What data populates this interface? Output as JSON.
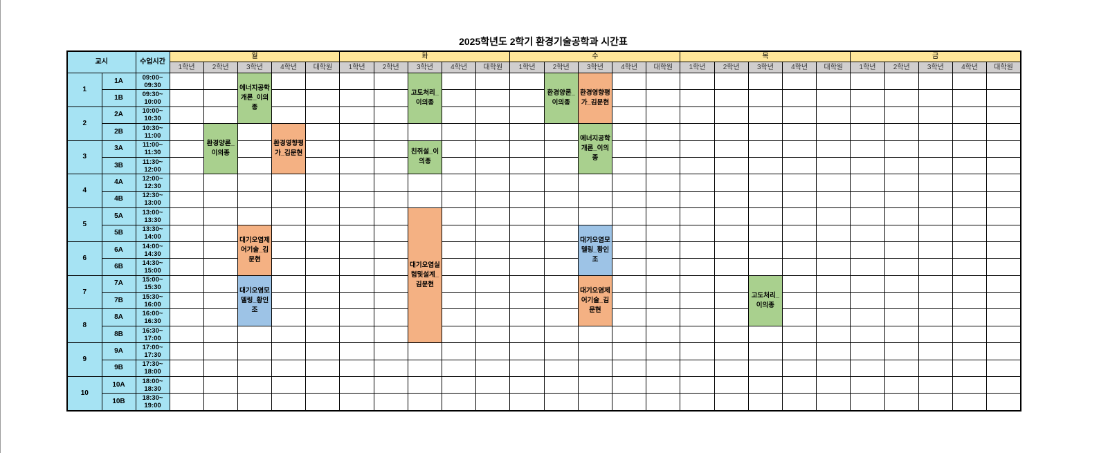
{
  "title": "2025학년도 2학기 환경기술공학과 시간표",
  "header": {
    "period_label": "교시",
    "time_label": "수업시간"
  },
  "days": [
    "월",
    "화",
    "수",
    "목",
    "금"
  ],
  "grades": [
    "1학년",
    "2학년",
    "3학년",
    "4학년",
    "대학원"
  ],
  "periods": [
    {
      "num": "1",
      "slots": [
        {
          "id": "1A",
          "time": "09:00~ 09:30"
        },
        {
          "id": "1B",
          "time": "09:30~ 10:00"
        }
      ]
    },
    {
      "num": "2",
      "slots": [
        {
          "id": "2A",
          "time": "10:00~ 10:30"
        },
        {
          "id": "2B",
          "time": "10:30~ 11:00"
        }
      ]
    },
    {
      "num": "3",
      "slots": [
        {
          "id": "3A",
          "time": "11:00~ 11:30"
        },
        {
          "id": "3B",
          "time": "11:30~ 12:00"
        }
      ]
    },
    {
      "num": "4",
      "slots": [
        {
          "id": "4A",
          "time": "12:00~ 12:30"
        },
        {
          "id": "4B",
          "time": "12:30~ 13:00"
        }
      ]
    },
    {
      "num": "5",
      "slots": [
        {
          "id": "5A",
          "time": "13:00~ 13:30"
        },
        {
          "id": "5B",
          "time": "13:30~ 14:00"
        }
      ]
    },
    {
      "num": "6",
      "slots": [
        {
          "id": "6A",
          "time": "14:00~ 14:30"
        },
        {
          "id": "6B",
          "time": "14:30~ 15:00"
        }
      ]
    },
    {
      "num": "7",
      "slots": [
        {
          "id": "7A",
          "time": "15:00~ 15:30"
        },
        {
          "id": "7B",
          "time": "15:30~ 16:00"
        }
      ]
    },
    {
      "num": "8",
      "slots": [
        {
          "id": "8A",
          "time": "16:00~ 16:30"
        },
        {
          "id": "8B",
          "time": "16:30~ 17:00"
        }
      ]
    },
    {
      "num": "9",
      "slots": [
        {
          "id": "9A",
          "time": "17:00~ 17:30"
        },
        {
          "id": "9B",
          "time": "17:30~ 18:00"
        }
      ]
    },
    {
      "num": "10",
      "slots": [
        {
          "id": "10A",
          "time": "18:00~ 18:30"
        },
        {
          "id": "10B",
          "time": "18:30~ 19:00"
        }
      ]
    }
  ],
  "colors": {
    "green": "#a9d08e",
    "orange": "#f4b183",
    "blue": "#9dc3e6",
    "header_blue": "#a6e3f3",
    "day_yellow": "#ffe699",
    "grade_gray": "#d0cece"
  },
  "classes": [
    {
      "day": "월",
      "grade": "3학년",
      "start": "1A",
      "end": "2A",
      "name": "에너지공학개론_이의종",
      "color": "green"
    },
    {
      "day": "월",
      "grade": "2학년",
      "start": "2B",
      "end": "3B",
      "name": "환경양론_이의종",
      "color": "green"
    },
    {
      "day": "월",
      "grade": "4학년",
      "start": "2B",
      "end": "3B",
      "name": "환경영향평가_김문현",
      "color": "orange"
    },
    {
      "day": "월",
      "grade": "3학년",
      "start": "5B",
      "end": "6B",
      "name": "대기오염제어기술_김문현",
      "color": "orange"
    },
    {
      "day": "월",
      "grade": "3학년",
      "start": "7A",
      "end": "8A",
      "name": "대기오염모델링_황인조",
      "color": "blue"
    },
    {
      "day": "화",
      "grade": "3학년",
      "start": "1A",
      "end": "2A",
      "name": "고도처리_이의종",
      "color": "green"
    },
    {
      "day": "화",
      "grade": "3학년",
      "start": "3A",
      "end": "3B",
      "name": "친쥐설_이의종",
      "color": "green"
    },
    {
      "day": "화",
      "grade": "3학년",
      "start": "5A",
      "end": "8B",
      "name": "대기오염실험및설계_김문현",
      "color": "orange"
    },
    {
      "day": "수",
      "grade": "2학년",
      "start": "1A",
      "end": "2A",
      "name": "환경양론_이의종",
      "color": "green"
    },
    {
      "day": "수",
      "grade": "3학년",
      "start": "1A",
      "end": "2A",
      "name": "환경영향평가_김문현",
      "color": "orange"
    },
    {
      "day": "수",
      "grade": "3학년",
      "start": "2B",
      "end": "3B",
      "name": "에너지공학개론_이의종",
      "color": "green"
    },
    {
      "day": "수",
      "grade": "3학년",
      "start": "5B",
      "end": "6B",
      "name": "대기오염모델링_황인조",
      "color": "blue"
    },
    {
      "day": "수",
      "grade": "3학년",
      "start": "7A",
      "end": "8A",
      "name": "대기오염제어기술_김문현",
      "color": "orange"
    },
    {
      "day": "목",
      "grade": "3학년",
      "start": "7A",
      "end": "8A",
      "name": "고도처리_이의종",
      "color": "green"
    }
  ]
}
